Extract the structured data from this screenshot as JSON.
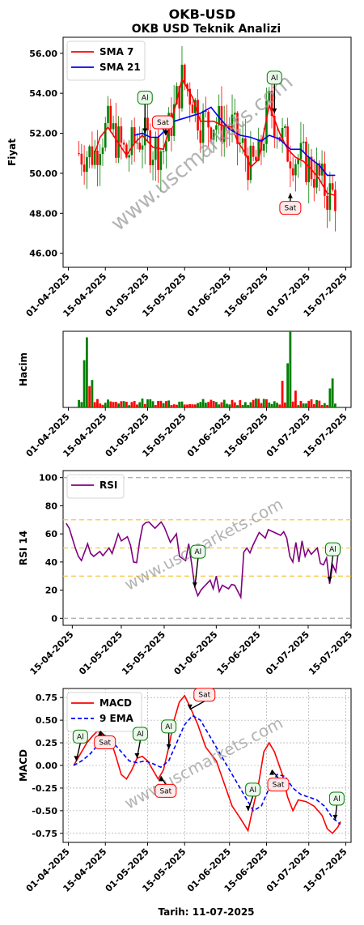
{
  "header": {
    "title": "OKB-USD",
    "subtitle": "OKB USD Teknik Analizi",
    "watermark": "www.uscmarkets.com",
    "footer": "Tarih: 11-07-2025"
  },
  "colors": {
    "up": "#008000",
    "down": "#ff0000",
    "sma7": "#ff0000",
    "sma21": "#0000ff",
    "rsi": "#800080",
    "macd": "#ff0000",
    "ema": "#0000ff",
    "buy_edge": "#008000",
    "sell_edge": "#ff0000",
    "buy_fill": "#eaf7ea",
    "sell_fill": "#fdeaea"
  },
  "buy_label": "Al",
  "sell_label": "Sat",
  "chart_data": [
    {
      "id": "price",
      "type": "line",
      "ylabel": "Fiyat",
      "ylim": [
        45.3,
        56.8
      ],
      "yticks": [
        "46.00",
        "48.00",
        "50.00",
        "52.00",
        "54.00",
        "56.00"
      ],
      "x_range": [
        "2025-03-30",
        "2025-07-17"
      ],
      "x_ticks": [
        "01-04-2025",
        "15-04-2025",
        "01-05-2025",
        "15-05-2025",
        "01-06-2025",
        "15-06-2025",
        "01-07-2025",
        "15-07-2025"
      ],
      "legend": {
        "placement": "upper-left",
        "entries": [
          "SMA 7",
          "SMA 21"
        ]
      },
      "candles_range": [
        "2025-04-05",
        "2025-07-11"
      ],
      "sma7": [
        [
          "2025-04-11",
          51.0
        ],
        [
          "2025-04-13",
          51.8
        ],
        [
          "2025-04-16",
          52.3
        ],
        [
          "2025-04-20",
          51.5
        ],
        [
          "2025-04-23",
          50.9
        ],
        [
          "2025-04-26",
          51.5
        ],
        [
          "2025-04-29",
          51.9
        ],
        [
          "2025-05-03",
          51.3
        ],
        [
          "2025-05-07",
          51.2
        ],
        [
          "2025-05-11",
          53.1
        ],
        [
          "2025-05-14",
          54.7
        ],
        [
          "2025-05-18",
          53.8
        ],
        [
          "2025-05-21",
          52.6
        ],
        [
          "2025-05-26",
          52.6
        ],
        [
          "2025-05-29",
          52.4
        ],
        [
          "2025-06-02",
          52.3
        ],
        [
          "2025-06-04",
          51.6
        ],
        [
          "2025-06-07",
          51.0
        ],
        [
          "2025-06-09",
          50.3
        ],
        [
          "2025-06-12",
          50.7
        ],
        [
          "2025-06-16",
          53.4
        ],
        [
          "2025-06-20",
          52.0
        ],
        [
          "2025-06-23",
          51.2
        ],
        [
          "2025-06-26",
          50.8
        ],
        [
          "2025-06-29",
          50.6
        ],
        [
          "2025-07-02",
          50.2
        ],
        [
          "2025-07-05",
          49.7
        ],
        [
          "2025-07-08",
          49.0
        ],
        [
          "2025-07-11",
          48.9
        ]
      ],
      "sma21": [
        [
          "2025-04-26",
          51.9
        ],
        [
          "2025-04-29",
          52.0
        ],
        [
          "2025-05-02",
          51.8
        ],
        [
          "2025-05-05",
          51.8
        ],
        [
          "2025-05-08",
          52.2
        ],
        [
          "2025-05-11",
          52.6
        ],
        [
          "2025-05-16",
          52.8
        ],
        [
          "2025-05-21",
          53.0
        ],
        [
          "2025-05-25",
          53.3
        ],
        [
          "2025-05-28",
          52.8
        ],
        [
          "2025-06-01",
          52.2
        ],
        [
          "2025-06-05",
          51.9
        ],
        [
          "2025-06-09",
          51.8
        ],
        [
          "2025-06-13",
          51.6
        ],
        [
          "2025-06-16",
          51.9
        ],
        [
          "2025-06-20",
          51.7
        ],
        [
          "2025-06-24",
          51.2
        ],
        [
          "2025-06-28",
          51.2
        ],
        [
          "2025-07-01",
          50.8
        ],
        [
          "2025-07-05",
          50.4
        ],
        [
          "2025-07-08",
          49.9
        ],
        [
          "2025-07-11",
          49.9
        ]
      ],
      "annotations": [
        {
          "kind": "buy",
          "date": "2025-04-30",
          "value": 52.0
        },
        {
          "kind": "sell",
          "date": "2025-05-08",
          "value": 51.9
        },
        {
          "kind": "buy",
          "date": "2025-06-18",
          "value": 53.0
        },
        {
          "kind": "sell",
          "date": "2025-06-24",
          "value": 49.0
        }
      ]
    },
    {
      "id": "volume",
      "type": "bar",
      "ylabel": "Hacim",
      "ylim": [
        0,
        1.0
      ],
      "x_range": [
        "2025-03-30",
        "2025-07-17"
      ],
      "x_ticks": [
        "01-04-2025",
        "15-04-2025",
        "01-05-2025",
        "15-05-2025",
        "01-06-2025",
        "15-06-2025",
        "01-07-2025",
        "15-07-2025"
      ],
      "bars_range": [
        "2025-04-05",
        "2025-07-11"
      ],
      "spikes": [
        [
          "2025-04-08",
          0.92,
          "up"
        ],
        [
          "2025-04-07",
          0.62,
          "up"
        ],
        [
          "2025-04-10",
          0.36,
          "up"
        ],
        [
          "2025-04-09",
          0.28,
          "down"
        ],
        [
          "2025-06-24",
          1.0,
          "up"
        ],
        [
          "2025-06-23",
          0.58,
          "up"
        ],
        [
          "2025-06-21",
          0.35,
          "down"
        ],
        [
          "2025-06-26",
          0.22,
          "down"
        ],
        [
          "2025-07-10",
          0.38,
          "up"
        ],
        [
          "2025-07-09",
          0.25,
          "up"
        ]
      ]
    },
    {
      "id": "rsi",
      "type": "line",
      "ylabel": "RSI 14",
      "ylim": [
        -5,
        105
      ],
      "yticks": [
        "0",
        "20",
        "40",
        "60",
        "80",
        "100"
      ],
      "x_range": [
        "2025-04-12",
        "2025-07-15"
      ],
      "x_ticks": [
        "15-04-2025",
        "01-05-2025",
        "15-05-2025",
        "01-06-2025",
        "15-06-2025",
        "01-07-2025",
        "15-07-2025"
      ],
      "legend": {
        "placement": "upper-left",
        "entries": [
          "RSI"
        ]
      },
      "hlines": [
        0,
        30,
        50,
        70,
        100
      ],
      "series": [
        [
          "2025-04-13",
          67.5
        ],
        [
          "2025-04-14",
          64.0
        ],
        [
          "2025-04-16",
          50.0
        ],
        [
          "2025-04-17",
          44.0
        ],
        [
          "2025-04-18",
          41.0
        ],
        [
          "2025-04-20",
          53.0
        ],
        [
          "2025-04-21",
          46.0
        ],
        [
          "2025-04-22",
          44.0
        ],
        [
          "2025-04-24",
          47.5
        ],
        [
          "2025-04-25",
          44.5
        ],
        [
          "2025-04-27",
          50.0
        ],
        [
          "2025-04-28",
          46.0
        ],
        [
          "2025-04-30",
          60.0
        ],
        [
          "2025-05-01",
          55.0
        ],
        [
          "2025-05-03",
          58.0
        ],
        [
          "2025-05-04",
          52.0
        ],
        [
          "2025-05-05",
          40.0
        ],
        [
          "2025-05-06",
          39.5
        ],
        [
          "2025-05-07",
          55.0
        ],
        [
          "2025-05-08",
          66.0
        ],
        [
          "2025-05-09",
          68.0
        ],
        [
          "2025-05-10",
          68.5
        ],
        [
          "2025-05-12",
          64.0
        ],
        [
          "2025-05-14",
          68.5
        ],
        [
          "2025-05-15",
          65.0
        ],
        [
          "2025-05-17",
          54.0
        ],
        [
          "2025-05-19",
          60.0
        ],
        [
          "2025-05-20",
          44.0
        ],
        [
          "2025-05-22",
          41.0
        ],
        [
          "2025-05-23",
          53.0
        ],
        [
          "2025-05-24",
          38.0
        ],
        [
          "2025-05-25",
          22.0
        ],
        [
          "2025-05-26",
          16.0
        ],
        [
          "2025-05-27",
          20.0
        ],
        [
          "2025-05-28",
          22.5
        ],
        [
          "2025-05-30",
          27.0
        ],
        [
          "2025-05-31",
          21.0
        ],
        [
          "2025-06-01",
          30.0
        ],
        [
          "2025-06-02",
          19.0
        ],
        [
          "2025-06-03",
          23.5
        ],
        [
          "2025-06-05",
          21.0
        ],
        [
          "2025-06-06",
          24.0
        ],
        [
          "2025-06-07",
          23.5
        ],
        [
          "2025-06-09",
          15.0
        ],
        [
          "2025-06-10",
          47.0
        ],
        [
          "2025-06-11",
          50.0
        ],
        [
          "2025-06-12",
          46.5
        ],
        [
          "2025-06-13",
          52.0
        ],
        [
          "2025-06-15",
          61.0
        ],
        [
          "2025-06-17",
          57.0
        ],
        [
          "2025-06-18",
          63.0
        ],
        [
          "2025-06-20",
          61.0
        ],
        [
          "2025-06-21",
          60.0
        ],
        [
          "2025-06-22",
          59.0
        ],
        [
          "2025-06-23",
          61.5
        ],
        [
          "2025-06-24",
          57.0
        ],
        [
          "2025-06-25",
          44.0
        ],
        [
          "2025-06-26",
          40.0
        ],
        [
          "2025-06-27",
          54.0
        ],
        [
          "2025-06-28",
          40.0
        ],
        [
          "2025-06-29",
          55.0
        ],
        [
          "2025-06-30",
          44.0
        ],
        [
          "2025-07-01",
          49.0
        ],
        [
          "2025-07-02",
          45.5
        ],
        [
          "2025-07-04",
          50.0
        ],
        [
          "2025-07-05",
          39.0
        ],
        [
          "2025-07-06",
          38.0
        ],
        [
          "2025-07-07",
          43.0
        ],
        [
          "2025-07-08",
          24.5
        ],
        [
          "2025-07-09",
          38.0
        ],
        [
          "2025-07-10",
          33.0
        ],
        [
          "2025-07-11",
          50.0
        ]
      ],
      "annotations": [
        {
          "kind": "buy",
          "date": "2025-05-25",
          "value": 22
        },
        {
          "kind": "buy",
          "date": "2025-07-08",
          "value": 26
        }
      ]
    },
    {
      "id": "macd",
      "type": "line",
      "ylabel": "MACD",
      "ylim": [
        -0.85,
        0.85
      ],
      "yticks": [
        "-0.75",
        "-0.50",
        "-0.25",
        "0.00",
        "0.25",
        "0.50",
        "0.75"
      ],
      "x_range": [
        "2025-03-30",
        "2025-07-17"
      ],
      "x_ticks": [
        "01-04-2025",
        "15-04-2025",
        "01-05-2025",
        "15-05-2025",
        "01-06-2025",
        "15-06-2025",
        "01-07-2025",
        "15-07-2025"
      ],
      "legend": {
        "placement": "upper-left",
        "entries": [
          "MACD",
          "9 EMA"
        ]
      },
      "macd": [
        [
          "2025-04-03",
          0.0
        ],
        [
          "2025-04-05",
          0.1
        ],
        [
          "2025-04-08",
          0.25
        ],
        [
          "2025-04-10",
          0.32
        ],
        [
          "2025-04-12",
          0.38
        ],
        [
          "2025-04-15",
          0.32
        ],
        [
          "2025-04-17",
          0.28
        ],
        [
          "2025-04-19",
          0.1
        ],
        [
          "2025-04-21",
          -0.1
        ],
        [
          "2025-04-23",
          -0.15
        ],
        [
          "2025-04-25",
          -0.05
        ],
        [
          "2025-04-27",
          0.08
        ],
        [
          "2025-04-29",
          0.1
        ],
        [
          "2025-05-01",
          0.05
        ],
        [
          "2025-05-03",
          -0.05
        ],
        [
          "2025-05-05",
          -0.15
        ],
        [
          "2025-05-07",
          -0.05
        ],
        [
          "2025-05-09",
          0.2
        ],
        [
          "2025-05-11",
          0.5
        ],
        [
          "2025-05-13",
          0.7
        ],
        [
          "2025-05-15",
          0.77
        ],
        [
          "2025-05-17",
          0.65
        ],
        [
          "2025-05-20",
          0.45
        ],
        [
          "2025-05-23",
          0.2
        ],
        [
          "2025-05-27",
          0.05
        ],
        [
          "2025-05-30",
          -0.2
        ],
        [
          "2025-06-02",
          -0.45
        ],
        [
          "2025-06-05",
          -0.58
        ],
        [
          "2025-06-08",
          -0.72
        ],
        [
          "2025-06-10",
          -0.45
        ],
        [
          "2025-06-12",
          -0.2
        ],
        [
          "2025-06-14",
          0.15
        ],
        [
          "2025-06-16",
          0.25
        ],
        [
          "2025-06-18",
          0.15
        ],
        [
          "2025-06-21",
          -0.1
        ],
        [
          "2025-06-23",
          -0.35
        ],
        [
          "2025-06-25",
          -0.5
        ],
        [
          "2025-06-27",
          -0.38
        ],
        [
          "2025-06-30",
          -0.4
        ],
        [
          "2025-07-03",
          -0.45
        ],
        [
          "2025-07-06",
          -0.55
        ],
        [
          "2025-07-08",
          -0.7
        ],
        [
          "2025-07-10",
          -0.75
        ],
        [
          "2025-07-12",
          -0.68
        ],
        [
          "2025-07-13",
          -0.62
        ]
      ],
      "ema": [
        [
          "2025-04-03",
          0.0
        ],
        [
          "2025-04-06",
          0.05
        ],
        [
          "2025-04-09",
          0.12
        ],
        [
          "2025-04-12",
          0.22
        ],
        [
          "2025-04-15",
          0.28
        ],
        [
          "2025-04-18",
          0.25
        ],
        [
          "2025-04-21",
          0.15
        ],
        [
          "2025-04-24",
          0.05
        ],
        [
          "2025-04-27",
          0.03
        ],
        [
          "2025-04-30",
          0.05
        ],
        [
          "2025-05-03",
          0.02
        ],
        [
          "2025-05-06",
          -0.02
        ],
        [
          "2025-05-09",
          0.05
        ],
        [
          "2025-05-12",
          0.25
        ],
        [
          "2025-05-15",
          0.45
        ],
        [
          "2025-05-18",
          0.55
        ],
        [
          "2025-05-21",
          0.5
        ],
        [
          "2025-05-25",
          0.3
        ],
        [
          "2025-05-29",
          0.1
        ],
        [
          "2025-06-02",
          -0.1
        ],
        [
          "2025-06-06",
          -0.3
        ],
        [
          "2025-06-10",
          -0.5
        ],
        [
          "2025-06-13",
          -0.45
        ],
        [
          "2025-06-16",
          -0.25
        ],
        [
          "2025-06-19",
          -0.1
        ],
        [
          "2025-06-22",
          -0.12
        ],
        [
          "2025-06-25",
          -0.25
        ],
        [
          "2025-06-28",
          -0.32
        ],
        [
          "2025-07-01",
          -0.35
        ],
        [
          "2025-07-04",
          -0.38
        ],
        [
          "2025-07-07",
          -0.45
        ],
        [
          "2025-07-10",
          -0.58
        ],
        [
          "2025-07-13",
          -0.65
        ]
      ],
      "annotations": [
        {
          "kind": "buy",
          "date": "2025-04-04",
          "value": 0.05
        },
        {
          "kind": "sell",
          "date": "2025-04-13",
          "value": 0.38
        },
        {
          "kind": "buy",
          "date": "2025-04-27",
          "value": 0.08
        },
        {
          "kind": "sell",
          "date": "2025-05-06",
          "value": -0.12
        },
        {
          "kind": "buy",
          "date": "2025-05-09",
          "value": 0.18
        },
        {
          "kind": "sell",
          "date": "2025-05-17",
          "value": 0.62
        },
        {
          "kind": "buy",
          "date": "2025-06-08",
          "value": -0.5
        },
        {
          "kind": "sell",
          "date": "2025-06-17",
          "value": -0.05
        },
        {
          "kind": "buy",
          "date": "2025-07-11",
          "value": -0.6
        }
      ]
    }
  ]
}
